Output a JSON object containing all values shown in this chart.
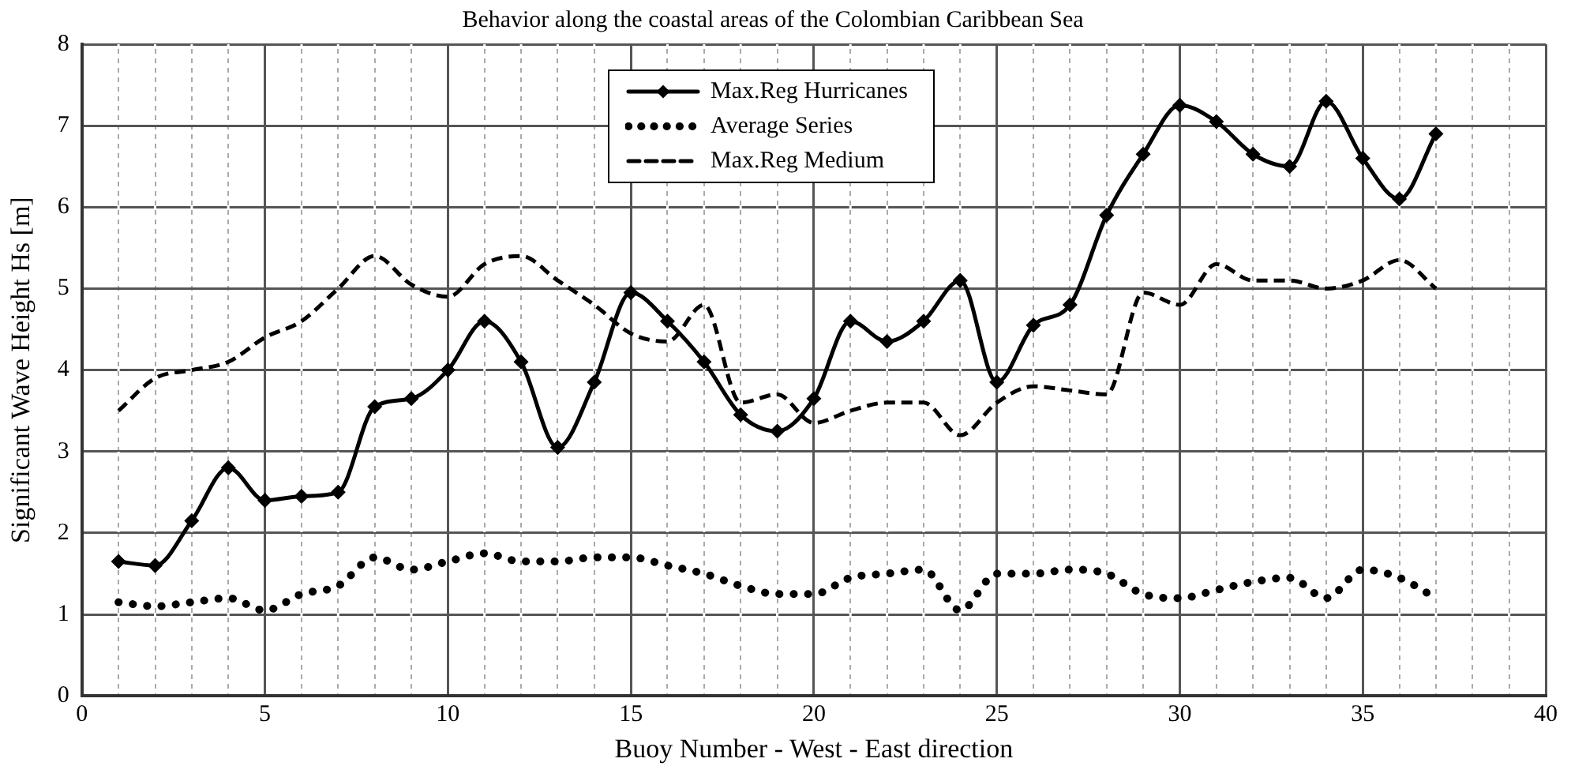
{
  "chart_data": {
    "type": "line",
    "title": "Behavior along the coastal areas of the Colombian Caribbean Sea",
    "xlabel": "Buoy Number - West - East direction",
    "ylabel": "Significant Wave Height Hs [m]",
    "x": [
      1,
      2,
      3,
      4,
      5,
      6,
      7,
      8,
      9,
      10,
      11,
      12,
      13,
      14,
      15,
      16,
      17,
      18,
      19,
      20,
      21,
      22,
      23,
      24,
      25,
      26,
      27,
      28,
      29,
      30,
      31,
      32,
      33,
      34,
      35,
      36,
      37
    ],
    "series": [
      {
        "name": "Max.Reg Hurricanes",
        "color": "#000000",
        "marker": "diamond",
        "line_style": "solid",
        "values": [
          1.65,
          1.6,
          2.15,
          2.8,
          2.4,
          2.45,
          2.5,
          3.55,
          3.65,
          4.0,
          4.6,
          4.1,
          3.05,
          3.85,
          4.95,
          4.6,
          4.1,
          3.45,
          3.25,
          3.65,
          4.6,
          4.35,
          4.6,
          5.1,
          3.85,
          4.55,
          4.8,
          5.9,
          6.65,
          7.25,
          7.05,
          6.65,
          6.5,
          7.3,
          6.6,
          6.1,
          6.9
        ]
      },
      {
        "name": "Average Series",
        "color": "#000000",
        "marker": "none",
        "line_style": "dotted",
        "values": [
          1.15,
          1.1,
          1.15,
          1.2,
          1.05,
          1.25,
          1.35,
          1.7,
          1.55,
          1.65,
          1.75,
          1.65,
          1.65,
          1.7,
          1.7,
          1.6,
          1.5,
          1.35,
          1.25,
          1.25,
          1.45,
          1.5,
          1.55,
          1.05,
          1.5,
          1.5,
          1.55,
          1.5,
          1.25,
          1.2,
          1.3,
          1.4,
          1.45,
          1.2,
          1.55,
          1.45,
          1.2
        ]
      },
      {
        "name": "Max.Reg Medium",
        "color": "#000000",
        "marker": "none",
        "line_style": "dashed",
        "values": [
          3.5,
          3.9,
          4.0,
          4.1,
          4.4,
          4.6,
          5.0,
          5.4,
          5.05,
          4.9,
          5.3,
          5.4,
          5.1,
          4.8,
          4.45,
          4.35,
          4.8,
          3.6,
          3.7,
          3.35,
          3.5,
          3.6,
          3.6,
          3.2,
          3.6,
          3.8,
          3.75,
          3.7,
          4.95,
          4.8,
          5.3,
          5.1,
          5.1,
          5.0,
          5.1,
          5.35,
          5.0
        ]
      }
    ],
    "xlim": [
      0,
      40
    ],
    "xticks": [
      0,
      {
        "value": 1,
        "label": null
      },
      {
        "value": 2,
        "label": null
      },
      {
        "value": 3,
        "label": null
      },
      {
        "value": 4,
        "label": null
      },
      5,
      {
        "value": 6,
        "label": null
      },
      {
        "value": 7,
        "label": null
      },
      {
        "value": 8,
        "label": null
      },
      {
        "value": 9,
        "label": null
      },
      10,
      {
        "value": 11,
        "label": null
      },
      {
        "value": 12,
        "label": null
      },
      {
        "value": 13,
        "label": null
      },
      {
        "value": 14,
        "label": null
      },
      15,
      {
        "value": 16,
        "label": null
      },
      {
        "value": 17,
        "label": null
      },
      {
        "value": 18,
        "label": null
      },
      {
        "value": 19,
        "label": null
      },
      20,
      {
        "value": 21,
        "label": null
      },
      {
        "value": 22,
        "label": null
      },
      {
        "value": 23,
        "label": null
      },
      {
        "value": 24,
        "label": null
      },
      25,
      {
        "value": 26,
        "label": null
      },
      {
        "value": 27,
        "label": null
      },
      {
        "value": 28,
        "label": null
      },
      {
        "value": 29,
        "label": null
      },
      30,
      {
        "value": 31,
        "label": null
      },
      {
        "value": 32,
        "label": null
      },
      {
        "value": 33,
        "label": null
      },
      {
        "value": 34,
        "label": null
      },
      35,
      {
        "value": 36,
        "label": null
      },
      {
        "value": 37,
        "label": null
      },
      {
        "value": 38,
        "label": null
      },
      {
        "value": 39,
        "label": null
      },
      40
    ],
    "ylim": [
      0,
      8
    ],
    "yticks": [
      0,
      1,
      2,
      3,
      4,
      5,
      6,
      7,
      8
    ],
    "grid": true,
    "legend": "top"
  }
}
